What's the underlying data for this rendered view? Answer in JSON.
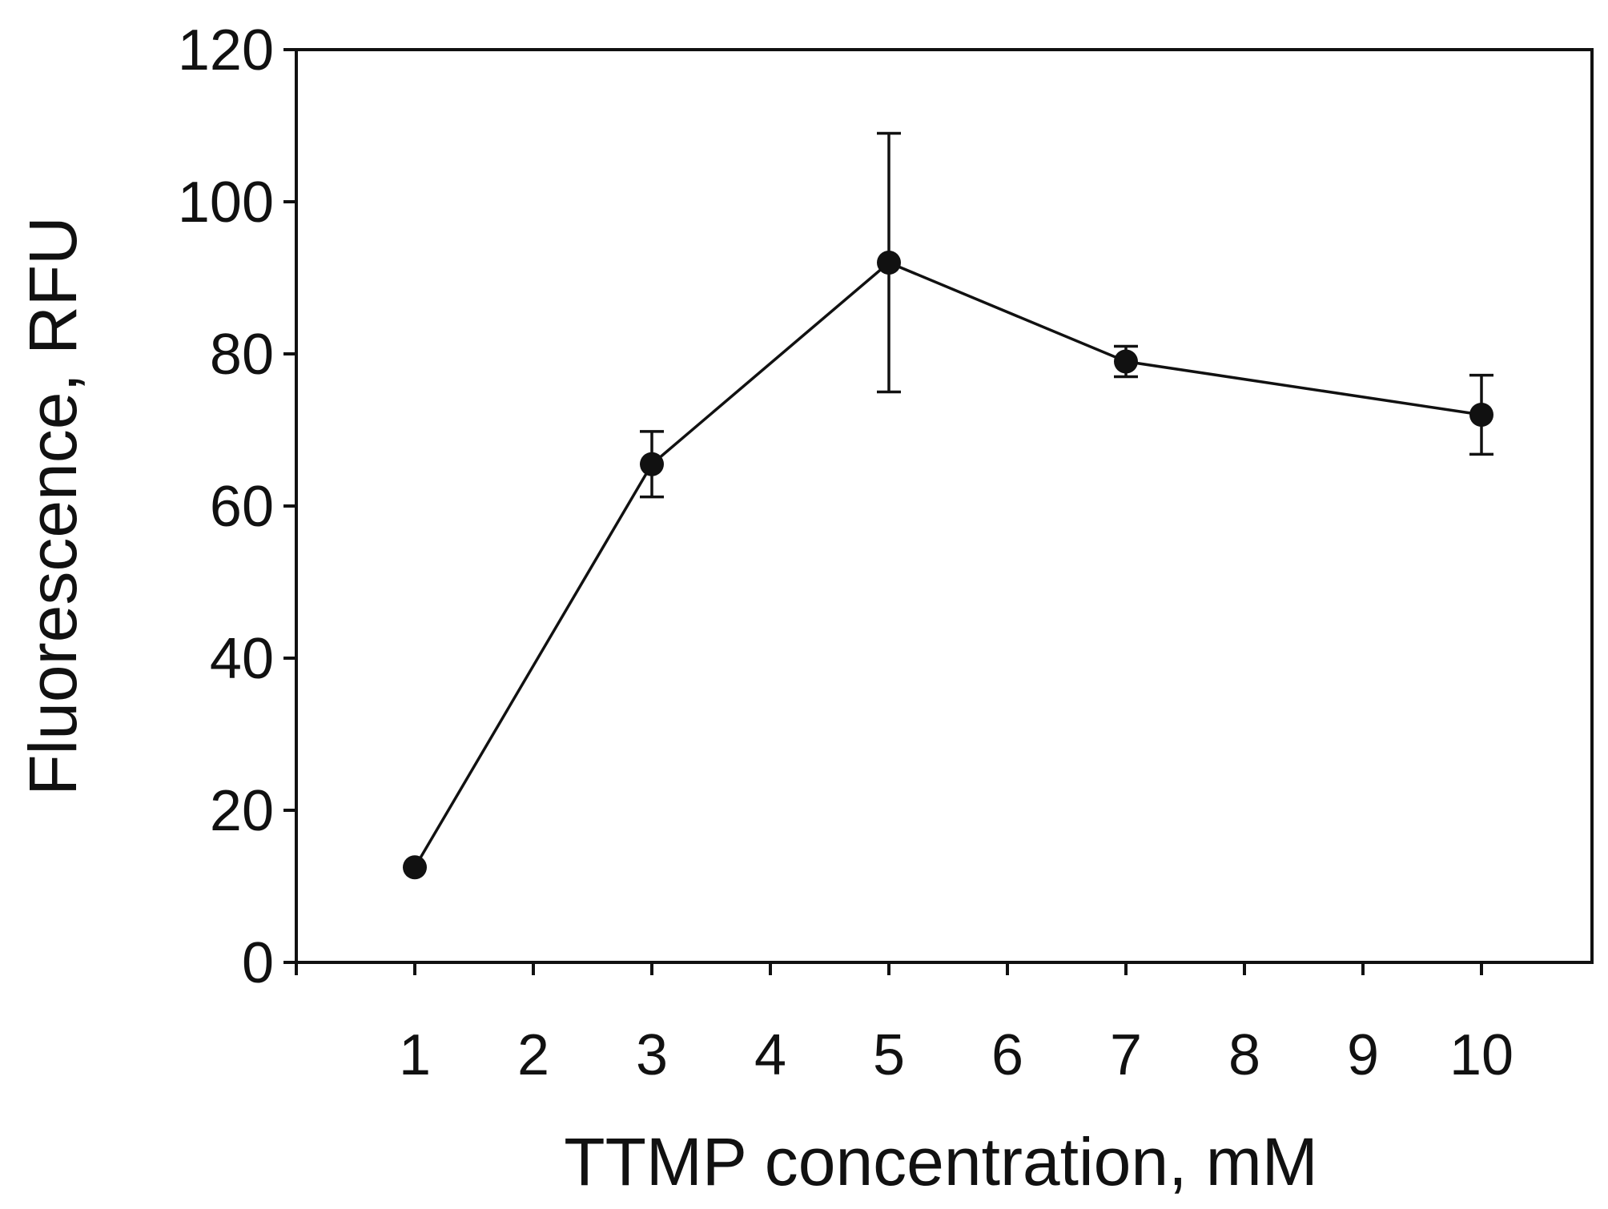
{
  "chart_data": {
    "type": "line",
    "title": "",
    "xlabel": "TTMP concentration, mM",
    "ylabel": "Fluorescence, RFU",
    "x_categories": [
      "1",
      "2",
      "3",
      "4",
      "5",
      "6",
      "7",
      "8",
      "9",
      "10"
    ],
    "y_ticks": [
      0,
      20,
      40,
      60,
      80,
      100,
      120
    ],
    "ylim": [
      0,
      120
    ],
    "grid": false,
    "series": [
      {
        "name": "Fluorescence",
        "x": [
          1,
          3,
          5,
          7,
          10
        ],
        "y": [
          12.5,
          65.5,
          92,
          79,
          72
        ],
        "error": [
          0,
          4.3,
          17,
          2,
          5.2
        ],
        "color": "#111111",
        "marker": "circle"
      }
    ]
  }
}
